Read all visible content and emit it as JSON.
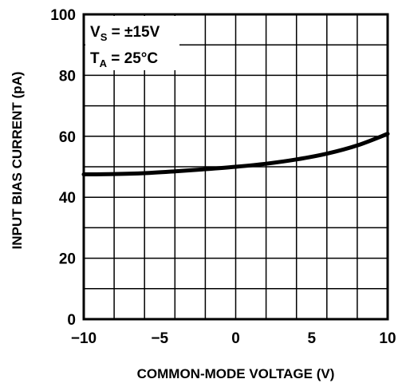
{
  "chart_data": {
    "type": "line",
    "xlabel": "COMMON-MODE VOLTAGE (V)",
    "ylabel": "INPUT BIAS CURRENT (pA)",
    "xlim": [
      -10,
      10
    ],
    "ylim": [
      0,
      100
    ],
    "x_ticks": [
      -10,
      -5,
      0,
      5,
      10
    ],
    "y_ticks": [
      0,
      20,
      40,
      60,
      80,
      100
    ],
    "x_tick_labels": [
      "−10",
      "−5",
      "0",
      "5",
      "10"
    ],
    "y_tick_labels": [
      "0",
      "20",
      "40",
      "60",
      "80",
      "100"
    ],
    "grid": true,
    "annotations": [
      {
        "main": "V",
        "sub": "S",
        "rest": " = ±15V"
      },
      {
        "main": "T",
        "sub": "A",
        "rest": " = 25°C"
      }
    ],
    "series": [
      {
        "x": [
          -10,
          -8,
          -6,
          -4,
          -2,
          0,
          2,
          4,
          6,
          8,
          10
        ],
        "values": [
          47.5,
          47.6,
          47.9,
          48.5,
          49.2,
          50.0,
          51.0,
          52.4,
          54.3,
          57.0,
          60.8
        ]
      }
    ]
  }
}
